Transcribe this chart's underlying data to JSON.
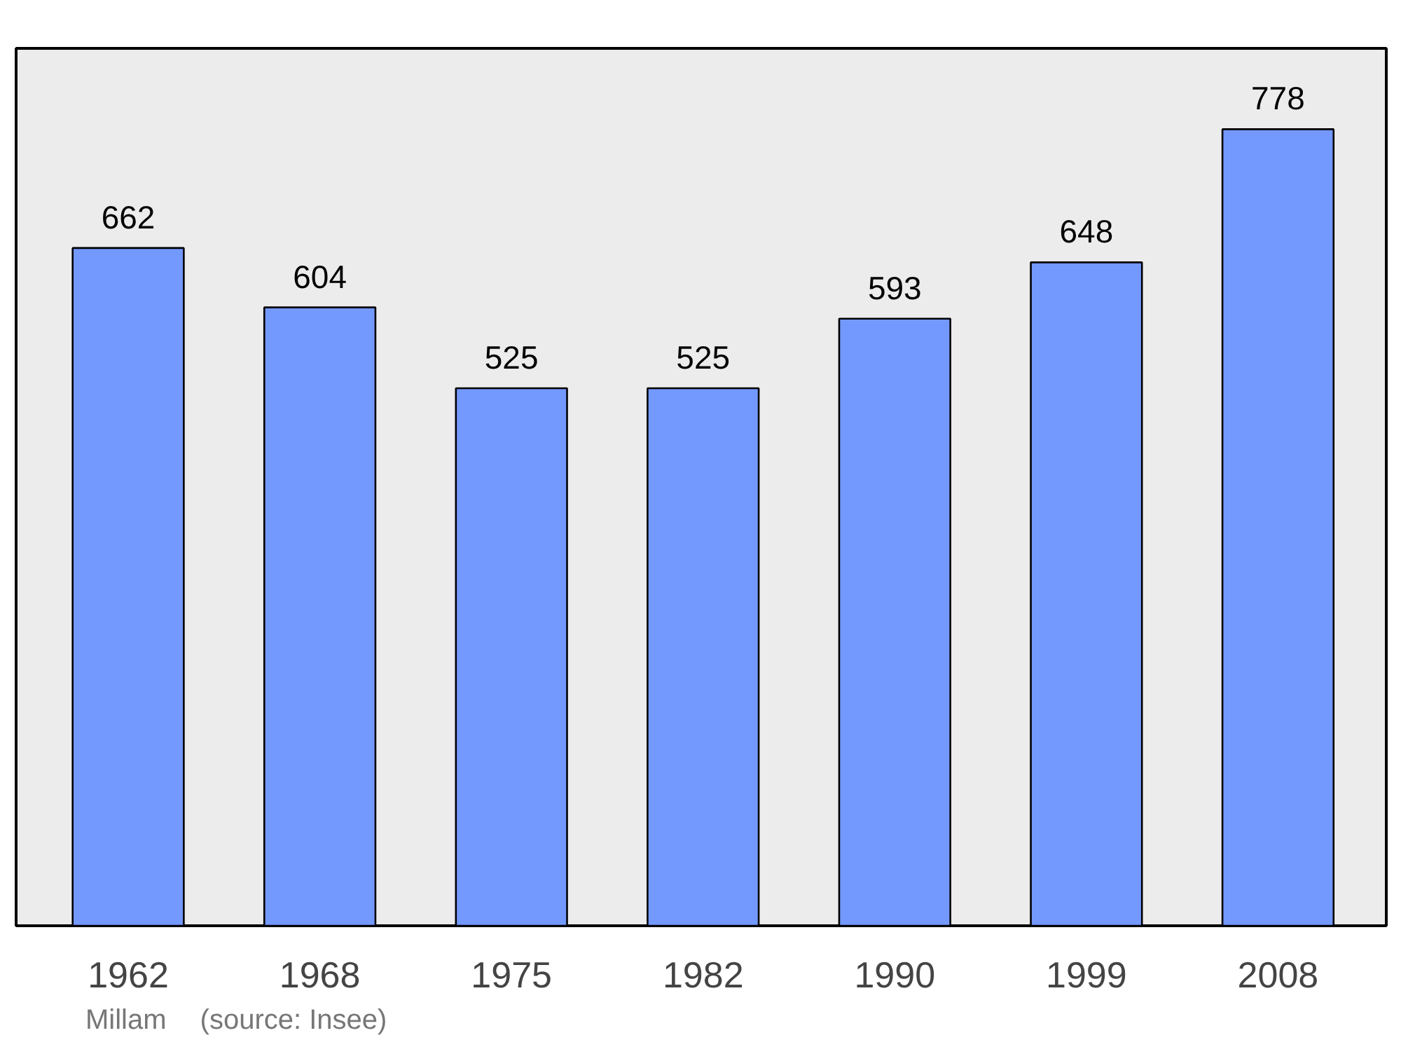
{
  "chart_data": {
    "type": "bar",
    "categories": [
      "1962",
      "1968",
      "1975",
      "1982",
      "1990",
      "1999",
      "2008"
    ],
    "values": [
      662,
      604,
      525,
      525,
      593,
      648,
      778
    ],
    "color": "#7399ff",
    "ylim": [
      0,
      857
    ],
    "data_labels": true,
    "grid": false,
    "tick_labels": "x",
    "annotations": [
      "Millam",
      "(source: Insee)"
    ]
  }
}
